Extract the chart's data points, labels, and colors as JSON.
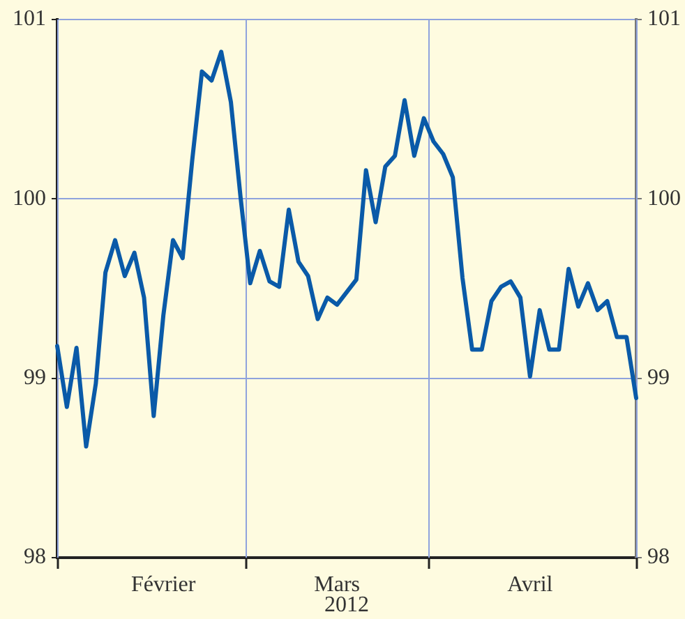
{
  "chart_data": {
    "type": "line",
    "xlabel": "2012",
    "categories": [
      null,
      null,
      null,
      null,
      null,
      null,
      null,
      null,
      null,
      null,
      null,
      "Février",
      null,
      null,
      null,
      null,
      null,
      null,
      null,
      null,
      null,
      null,
      null,
      null,
      null,
      null,
      null,
      null,
      null,
      "Mars",
      null,
      null,
      null,
      null,
      null,
      null,
      null,
      null,
      null,
      null,
      null,
      null,
      null,
      null,
      null,
      null,
      null,
      null,
      null,
      "Avril",
      null,
      null,
      null,
      null,
      null,
      null,
      null,
      null,
      null,
      null,
      null
    ],
    "series": [
      {
        "color": "#0a5aa8",
        "values": [
          99.18,
          98.84,
          99.17,
          98.62,
          98.97,
          99.59,
          99.77,
          99.57,
          99.7,
          99.45,
          98.79,
          99.35,
          99.77,
          99.67,
          100.22,
          100.71,
          100.66,
          100.82,
          100.54,
          100.01,
          99.53,
          99.71,
          99.54,
          99.51,
          99.94,
          99.65,
          99.57,
          99.33,
          99.45,
          99.41,
          99.48,
          99.55,
          100.16,
          99.87,
          100.18,
          100.24,
          100.55,
          100.24,
          100.45,
          100.32,
          100.25,
          100.12,
          99.56,
          99.16,
          99.16,
          99.43,
          99.51,
          99.54,
          99.45,
          99.01,
          99.38,
          99.16,
          99.16,
          99.61,
          99.4,
          99.53,
          99.38,
          99.43,
          99.23,
          99.23,
          98.89
        ]
      }
    ],
    "ylim": [
      98,
      101
    ],
    "yticks": [
      98,
      99,
      100,
      101
    ],
    "y2lim": [
      98,
      101
    ],
    "y2ticks": [
      98,
      99,
      100,
      101
    ],
    "grid": true,
    "marker": "none",
    "line_style": "solid"
  }
}
